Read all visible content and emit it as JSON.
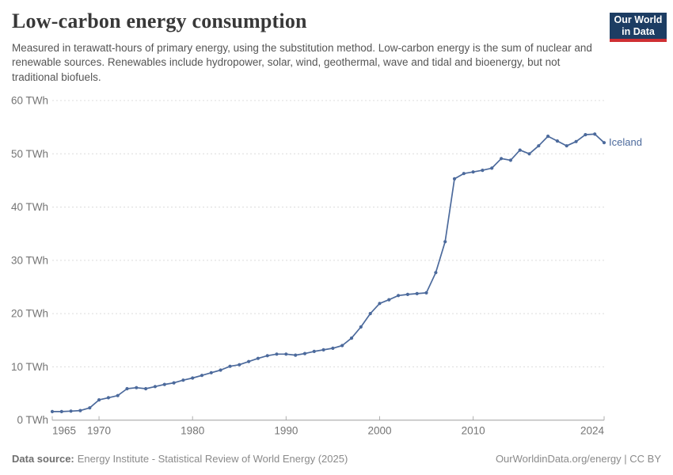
{
  "header": {
    "title": "Low-carbon energy consumption",
    "subtitle": "Measured in terawatt-hours of primary energy, using the substitution method. Low-carbon energy is the sum of nuclear and renewable sources. Renewables include hydropower, solar, wind, geothermal, wave and tidal and bioenergy, but not traditional biofuels.",
    "logo": {
      "line1": "Our World",
      "line2": "in Data",
      "bg_color": "#1d3d63",
      "accent_color": "#cf2f33"
    }
  },
  "chart_data": {
    "type": "line",
    "title": "Low-carbon energy consumption",
    "unit": "TWh",
    "xlim": [
      1965,
      2024
    ],
    "ylim": [
      0,
      60
    ],
    "yticks": [
      0,
      10,
      20,
      30,
      40,
      50,
      60
    ],
    "xticks": [
      1965,
      1970,
      1980,
      1990,
      2000,
      2010,
      2024
    ],
    "grid": "horizontal-dashed",
    "legend_position": "end-of-line",
    "x": [
      1965,
      1966,
      1967,
      1968,
      1969,
      1970,
      1971,
      1972,
      1973,
      1974,
      1975,
      1976,
      1977,
      1978,
      1979,
      1980,
      1981,
      1982,
      1983,
      1984,
      1985,
      1986,
      1987,
      1988,
      1989,
      1990,
      1991,
      1992,
      1993,
      1994,
      1995,
      1996,
      1997,
      1998,
      1999,
      2000,
      2001,
      2002,
      2003,
      2004,
      2005,
      2006,
      2007,
      2008,
      2009,
      2010,
      2011,
      2012,
      2013,
      2014,
      2015,
      2016,
      2017,
      2018,
      2019,
      2020,
      2021,
      2022,
      2023,
      2024
    ],
    "series": [
      {
        "name": "Iceland",
        "color": "#4C6A9C",
        "values": [
          1.6,
          1.6,
          1.7,
          1.8,
          2.3,
          3.8,
          4.2,
          4.6,
          5.9,
          6.1,
          5.9,
          6.3,
          6.7,
          7.0,
          7.5,
          7.9,
          8.4,
          8.9,
          9.4,
          10.1,
          10.4,
          11.0,
          11.6,
          12.1,
          12.4,
          12.4,
          12.2,
          12.5,
          12.9,
          13.2,
          13.5,
          14.0,
          15.4,
          17.5,
          20.0,
          21.9,
          22.6,
          23.4,
          23.6,
          23.75,
          23.9,
          27.7,
          33.5,
          45.3,
          46.3,
          46.6,
          46.9,
          47.3,
          49.1,
          48.8,
          50.7,
          50.0,
          51.5,
          53.3,
          52.4,
          51.5,
          52.3,
          53.6,
          53.7,
          52.1
        ]
      }
    ],
    "colors": {
      "grid": "#dcdcdc",
      "axis_line": "#9e9e9e",
      "tick_mark": "#afafaf",
      "tick_label": "#757575"
    }
  },
  "footer": {
    "datasource_label": "Data source:",
    "datasource": "Energy Institute - Statistical Review of World Energy (2025)",
    "credit": "OurWorldinData.org/energy | CC BY"
  }
}
